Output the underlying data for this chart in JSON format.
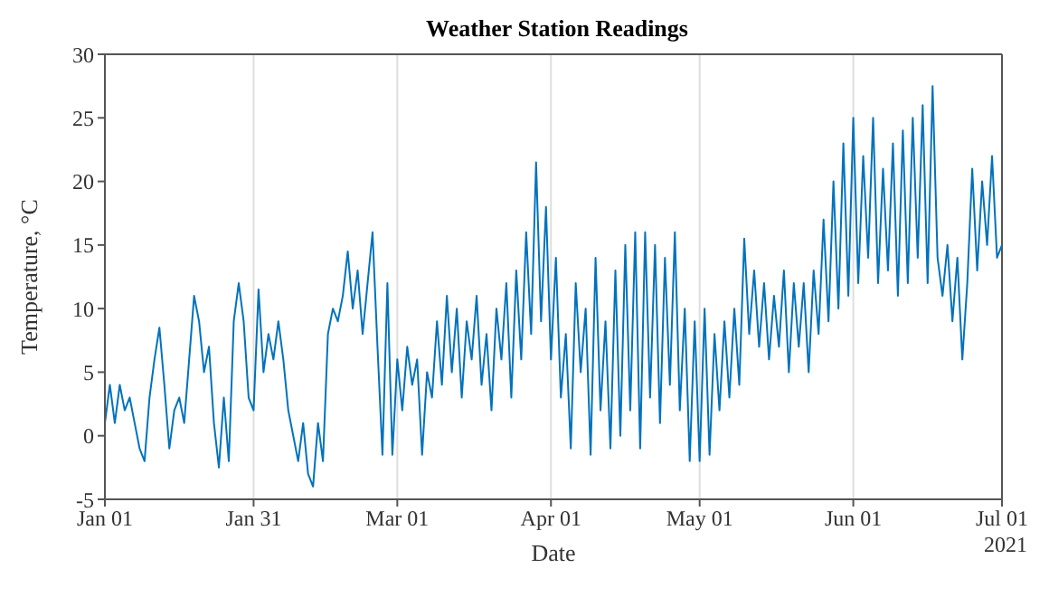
{
  "chart_data": {
    "type": "line",
    "title": "Weather Station Readings",
    "xlabel": "Date",
    "ylabel": "Temperature, °C",
    "annotations": [
      "2021"
    ],
    "x": [
      "2021-01-01",
      "2021-01-02",
      "2021-01-03",
      "2021-01-04",
      "2021-01-05",
      "2021-01-06",
      "2021-01-07",
      "2021-01-08",
      "2021-01-09",
      "2021-01-10",
      "2021-01-11",
      "2021-01-12",
      "2021-01-13",
      "2021-01-14",
      "2021-01-15",
      "2021-01-16",
      "2021-01-17",
      "2021-01-18",
      "2021-01-19",
      "2021-01-20",
      "2021-01-21",
      "2021-01-22",
      "2021-01-23",
      "2021-01-24",
      "2021-01-25",
      "2021-01-26",
      "2021-01-27",
      "2021-01-28",
      "2021-01-29",
      "2021-01-30",
      "2021-01-31",
      "2021-02-01",
      "2021-02-02",
      "2021-02-03",
      "2021-02-04",
      "2021-02-05",
      "2021-02-06",
      "2021-02-07",
      "2021-02-08",
      "2021-02-09",
      "2021-02-10",
      "2021-02-11",
      "2021-02-12",
      "2021-02-13",
      "2021-02-14",
      "2021-02-15",
      "2021-02-16",
      "2021-02-17",
      "2021-02-18",
      "2021-02-19",
      "2021-02-20",
      "2021-02-21",
      "2021-02-22",
      "2021-02-23",
      "2021-02-24",
      "2021-02-25",
      "2021-02-26",
      "2021-02-27",
      "2021-02-28",
      "2021-03-01",
      "2021-03-02",
      "2021-03-03",
      "2021-03-04",
      "2021-03-05",
      "2021-03-06",
      "2021-03-07",
      "2021-03-08",
      "2021-03-09",
      "2021-03-10",
      "2021-03-11",
      "2021-03-12",
      "2021-03-13",
      "2021-03-14",
      "2021-03-15",
      "2021-03-16",
      "2021-03-17",
      "2021-03-18",
      "2021-03-19",
      "2021-03-20",
      "2021-03-21",
      "2021-03-22",
      "2021-03-23",
      "2021-03-24",
      "2021-03-25",
      "2021-03-26",
      "2021-03-27",
      "2021-03-28",
      "2021-03-29",
      "2021-03-30",
      "2021-03-31",
      "2021-04-01",
      "2021-04-02",
      "2021-04-03",
      "2021-04-04",
      "2021-04-05",
      "2021-04-06",
      "2021-04-07",
      "2021-04-08",
      "2021-04-09",
      "2021-04-10",
      "2021-04-11",
      "2021-04-12",
      "2021-04-13",
      "2021-04-14",
      "2021-04-15",
      "2021-04-16",
      "2021-04-17",
      "2021-04-18",
      "2021-04-19",
      "2021-04-20",
      "2021-04-21",
      "2021-04-22",
      "2021-04-23",
      "2021-04-24",
      "2021-04-25",
      "2021-04-26",
      "2021-04-27",
      "2021-04-28",
      "2021-04-29",
      "2021-04-30",
      "2021-05-01",
      "2021-05-02",
      "2021-05-03",
      "2021-05-04",
      "2021-05-05",
      "2021-05-06",
      "2021-05-07",
      "2021-05-08",
      "2021-05-09",
      "2021-05-10",
      "2021-05-11",
      "2021-05-12",
      "2021-05-13",
      "2021-05-14",
      "2021-05-15",
      "2021-05-16",
      "2021-05-17",
      "2021-05-18",
      "2021-05-19",
      "2021-05-20",
      "2021-05-21",
      "2021-05-22",
      "2021-05-23",
      "2021-05-24",
      "2021-05-25",
      "2021-05-26",
      "2021-05-27",
      "2021-05-28",
      "2021-05-29",
      "2021-05-30",
      "2021-05-31",
      "2021-06-01",
      "2021-06-02",
      "2021-06-03",
      "2021-06-04",
      "2021-06-05",
      "2021-06-06",
      "2021-06-07",
      "2021-06-08",
      "2021-06-09",
      "2021-06-10",
      "2021-06-11",
      "2021-06-12",
      "2021-06-13",
      "2021-06-14",
      "2021-06-15",
      "2021-06-16",
      "2021-06-17",
      "2021-06-18",
      "2021-06-19",
      "2021-06-20",
      "2021-06-21",
      "2021-06-22",
      "2021-06-23",
      "2021-06-24",
      "2021-06-25",
      "2021-06-26",
      "2021-06-27",
      "2021-06-28",
      "2021-06-29",
      "2021-06-30",
      "2021-07-01"
    ],
    "series": [
      {
        "color": "#0072bd",
        "values": [
          1,
          4,
          1,
          4,
          2,
          3,
          1,
          -1,
          -2,
          3,
          6,
          8.5,
          4,
          -1,
          2,
          3,
          1,
          6,
          11,
          9,
          5,
          7,
          1,
          -2.5,
          3,
          -2,
          9,
          12,
          9,
          3,
          2,
          11.5,
          5,
          8,
          6,
          9,
          6,
          2,
          0,
          -2,
          1,
          -3,
          -4,
          1,
          -2,
          8,
          10,
          9,
          11,
          14.5,
          10,
          13,
          8,
          12,
          16,
          7,
          -1.5,
          12,
          -1.5,
          6,
          2,
          7,
          4,
          6,
          -1.5,
          5,
          3,
          9,
          4,
          11,
          5,
          10,
          3,
          9,
          6,
          11,
          4,
          8,
          2,
          10,
          6,
          12,
          3,
          13,
          6,
          16,
          8,
          21.5,
          9,
          18,
          6,
          14,
          3,
          8,
          -1,
          12,
          5,
          10,
          -1.5,
          14,
          2,
          9,
          -1,
          13,
          0,
          15,
          2,
          16,
          -1,
          16,
          3,
          15,
          1,
          14,
          4,
          16,
          2,
          10,
          -2,
          9,
          -2,
          10,
          -1.5,
          8,
          2,
          9,
          3,
          10,
          4,
          15.5,
          8,
          13,
          7,
          12,
          6,
          11,
          7,
          13,
          5,
          12,
          7,
          12,
          5,
          13,
          8,
          17,
          9,
          20,
          10,
          23,
          11,
          25,
          12,
          22,
          14,
          25,
          12,
          21,
          13,
          23,
          11,
          24,
          12,
          25,
          14,
          26,
          12,
          27.5,
          14,
          11,
          15,
          9,
          14,
          6,
          12,
          21,
          13,
          20,
          15,
          22,
          14,
          15
        ]
      }
    ],
    "xlim": [
      "2021-01-01",
      "2021-07-01"
    ],
    "xticks": [
      {
        "value": "2021-01-01",
        "label": "Jan 01"
      },
      {
        "value": "2021-01-31",
        "label": "Jan 31"
      },
      {
        "value": "2021-03-01",
        "label": "Mar 01"
      },
      {
        "value": "2021-04-01",
        "label": "Apr 01"
      },
      {
        "value": "2021-05-01",
        "label": "May 01"
      },
      {
        "value": "2021-06-01",
        "label": "Jun 01"
      },
      {
        "value": "2021-07-01",
        "label": "Jul 01"
      }
    ],
    "ylim": [
      -5,
      30
    ],
    "yticks": [
      -5,
      0,
      5,
      10,
      15,
      20,
      25,
      30
    ],
    "grid": "x"
  }
}
